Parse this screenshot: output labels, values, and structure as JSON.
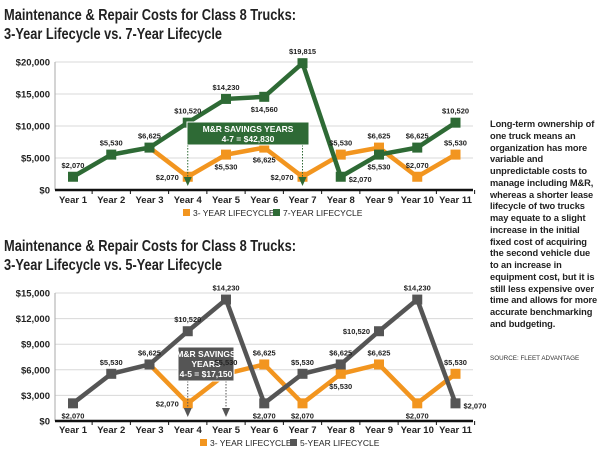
{
  "chart_data": [
    {
      "type": "line",
      "title": [
        "Maintenance & Repair Costs for Class 8 Trucks:",
        "3-Year Lifecycle vs. 7-Year Lifecycle"
      ],
      "categories": [
        "Year 1",
        "Year 2",
        "Year 3",
        "Year 4",
        "Year 5",
        "Year 6",
        "Year 7",
        "Year 8",
        "Year 9",
        "Year 10",
        "Year 11"
      ],
      "yticks": [
        "$0",
        "$5,000",
        "$10,000",
        "$15,000",
        "$20,000"
      ],
      "ylim": [
        0,
        20000
      ],
      "grid": true,
      "legend": "bottom",
      "series": [
        {
          "name": "3- YEAR LIFECYCLE",
          "color": "#f2951f",
          "values": [
            2070,
            5530,
            6625,
            2070,
            5530,
            6625,
            2070,
            5530,
            6625,
            2070,
            5530
          ],
          "labels": [
            "",
            "",
            "",
            "$2,070",
            "$5,530",
            "$6,625",
            "$2,070",
            "$5,530",
            "$6,625",
            "$2,070",
            "$5,530"
          ]
        },
        {
          "name": "7-YEAR LIFECYCLE",
          "color": "#2e6a35",
          "values": [
            2070,
            5530,
            6625,
            10520,
            14230,
            14560,
            19815,
            2070,
            5530,
            6625,
            10520
          ],
          "labels": [
            "$2,070",
            "$5,530",
            "$6,625",
            "$10,520",
            "$14,230",
            "$14,560",
            "$19,815",
            "$2,070",
            "$5,530",
            "$6,625",
            "$10,520"
          ]
        }
      ],
      "annotation": {
        "lines": [
          "M&R SAVINGS YEARS",
          "4-7 = $42,830"
        ],
        "color": "#2e6a35",
        "from": "Year 4",
        "to": "Year 7"
      }
    },
    {
      "type": "line",
      "title": [
        "Maintenance & Repair Costs for Class 8 Trucks:",
        "3-Year Lifecycle vs. 5-Year Lifecycle"
      ],
      "categories": [
        "Year 1",
        "Year 2",
        "Year 3",
        "Year 4",
        "Year 5",
        "Year 6",
        "Year 7",
        "Year 8",
        "Year 9",
        "Year 10",
        "Year 11"
      ],
      "yticks": [
        "$0",
        "$3,000",
        "$6,000",
        "$9,000",
        "$12,000",
        "$15,000"
      ],
      "ylim": [
        0,
        15000
      ],
      "grid": true,
      "legend": "bottom",
      "series": [
        {
          "name": "3- YEAR LIFECYCLE",
          "color": "#f2951f",
          "values": [
            2070,
            5530,
            6625,
            2070,
            5530,
            6625,
            2070,
            5530,
            6625,
            2070,
            5530
          ],
          "labels": [
            "",
            "",
            "",
            "$2,070",
            "$5,530",
            "$6,625",
            "$2,070",
            "$5,530",
            "$6,625",
            "$2,070",
            "$5,530"
          ]
        },
        {
          "name": "5-YEAR LIFECYCLE",
          "color": "#555555",
          "values": [
            2070,
            5530,
            6625,
            10520,
            14230,
            2070,
            5530,
            6625,
            10520,
            14230,
            2070
          ],
          "labels": [
            "$2,070",
            "$5,530",
            "$6,625",
            "$10,520",
            "$14,230",
            "$2,070",
            "$5,530",
            "$6,625",
            "$10,520",
            "$14,230",
            "$2,070"
          ]
        }
      ],
      "annotation": {
        "lines": [
          "M&R SAVINGS",
          "YEARS",
          "4-5 = $17,150"
        ],
        "color": "#555555",
        "from": "Year 4",
        "to": "Year 5"
      }
    }
  ],
  "sidebar": {
    "text": "Long-term ownership of one truck means an organization has more variable and unpredictable costs to manage including M&R, whereas a shorter lease lifecycle of two trucks may equate to a slight increase in the initial fixed cost of acquiring the second vehicle due to an increase in equipment cost, but it is still less expensive over time and allows for more accurate benchmarking and budgeting.",
    "source": "SOURCE: FLEET ADVANTAGE"
  }
}
